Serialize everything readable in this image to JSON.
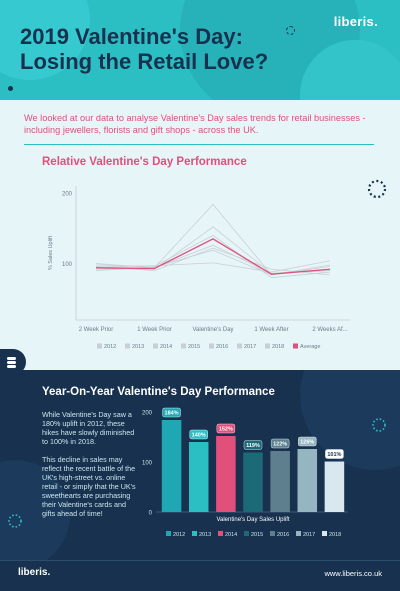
{
  "header": {
    "title_line1": "2019 Valentine's Day:",
    "title_line2": "Losing the Retail Love?",
    "logo": "liberis."
  },
  "intro": "We looked at our data to analyse Valentine's Day sales trends for retail businesses - including jewellers, florists and gift shops - across the UK.",
  "colors": {
    "teal": "#2bbfc4",
    "navy": "#17314f",
    "pink": "#e0507a",
    "light_bg": "#e6f5f8"
  },
  "chart1": {
    "title": "Relative Valentine's Day Performance",
    "chart_data": {
      "type": "line",
      "categories": [
        "2 Week Prior",
        "1 Week Prior",
        "Valentine's Day",
        "1 Week After",
        "2 Weeks Af..."
      ],
      "ylabel": "% Sales Uplift",
      "yticks": [
        100,
        200
      ],
      "ylim": [
        20,
        210
      ],
      "legend_position": "bottom",
      "series": [
        {
          "name": "2012",
          "values": [
            92,
            94,
            184,
            84,
            96
          ],
          "color": "#c8d0d6"
        },
        {
          "name": "2013",
          "values": [
            98,
            96,
            140,
            80,
            88
          ],
          "color": "#c8d0d6"
        },
        {
          "name": "2014",
          "values": [
            94,
            92,
            152,
            86,
            92
          ],
          "color": "#c8d0d6"
        },
        {
          "name": "2015",
          "values": [
            90,
            95,
            119,
            84,
            98
          ],
          "color": "#c8d0d6"
        },
        {
          "name": "2016",
          "values": [
            96,
            90,
            122,
            92,
            84
          ],
          "color": "#c8d0d6"
        },
        {
          "name": "2017",
          "values": [
            100,
            94,
            126,
            86,
            90
          ],
          "color": "#c8d0d6"
        },
        {
          "name": "2018",
          "values": [
            95,
            97,
            101,
            88,
            104
          ],
          "color": "#c8d0d6"
        },
        {
          "name": "Average",
          "values": [
            94,
            93,
            135,
            85,
            92
          ],
          "color": "#e0507a"
        }
      ]
    }
  },
  "chart2": {
    "title": "Year-On-Year Valentine's Day Performance",
    "text_para1": "While Valentine's Day saw a 180% uplift in 2012, these hikes have slowly diminished to 100% in 2018.",
    "text_para2": "This decline in sales may reflect the recent battle of the UK's high-street vs. online retail - or simply that the UK's sweethearts are purchasing their Valentine's cards and gifts ahead of time!",
    "chart_data": {
      "type": "bar",
      "categories": [
        "2012",
        "2013",
        "2014",
        "2015",
        "2016",
        "2017",
        "2018"
      ],
      "values": [
        184,
        140,
        152,
        119,
        122,
        126,
        101
      ],
      "labels": [
        "184%",
        "140%",
        "152%",
        "119%",
        "122%",
        "126%",
        "101%"
      ],
      "colors": [
        "#1fa8b4",
        "#2bbfc4",
        "#e0507a",
        "#1c6a78",
        "#5d7f8e",
        "#95b6c0",
        "#d8e8ee"
      ],
      "xlabel": "Valentine's Day Sales Uplift",
      "yticks": [
        0,
        100,
        200
      ],
      "ylim": [
        0,
        200
      ],
      "legend_position": "bottom"
    }
  },
  "footer": {
    "logo": "liberis.",
    "url": "www.liberis.co.uk"
  }
}
